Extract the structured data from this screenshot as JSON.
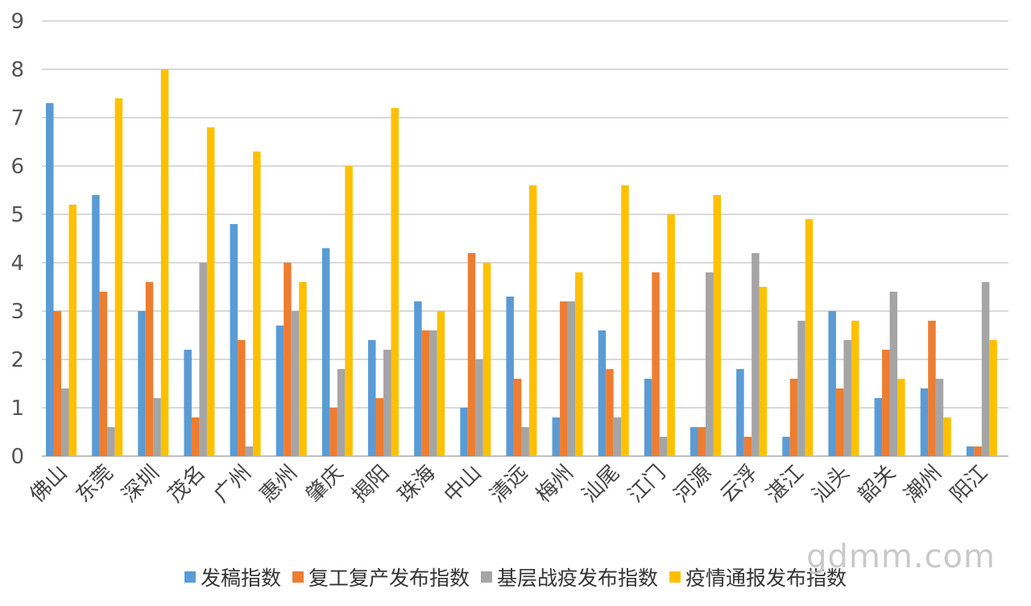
{
  "chart_data": {
    "type": "bar",
    "title": "",
    "xlabel": "",
    "ylabel": "",
    "ylim": [
      0,
      9
    ],
    "yticks": [
      "0",
      "1",
      "2",
      "3",
      "4",
      "5",
      "6",
      "7",
      "8",
      "9"
    ],
    "grid": true,
    "legend_position": "bottom",
    "categories": [
      "佛山",
      "东莞",
      "深圳",
      "茂名",
      "广州",
      "惠州",
      "肇庆",
      "揭阳",
      "珠海",
      "中山",
      "清远",
      "梅州",
      "汕尾",
      "江门",
      "河源",
      "云浮",
      "湛江",
      "汕头",
      "韶关",
      "潮州",
      "阳江"
    ],
    "series": [
      {
        "name": "发稿指数",
        "color": "#5b9bd5",
        "values": [
          7.3,
          5.4,
          3.0,
          2.2,
          4.8,
          2.7,
          4.3,
          2.4,
          3.2,
          1.0,
          3.3,
          0.8,
          2.6,
          1.6,
          0.6,
          1.8,
          0.4,
          3.0,
          1.2,
          1.4,
          0.2
        ]
      },
      {
        "name": "复工复产发布指数",
        "color": "#ed7d31",
        "values": [
          3.0,
          3.4,
          3.6,
          0.8,
          2.4,
          4.0,
          1.0,
          1.2,
          2.6,
          4.2,
          1.6,
          3.2,
          1.8,
          3.8,
          0.6,
          0.4,
          1.6,
          1.4,
          2.2,
          2.8,
          0.2
        ]
      },
      {
        "name": "基层战疫发布指数",
        "color": "#a5a5a5",
        "values": [
          1.4,
          0.6,
          1.2,
          4.0,
          0.2,
          3.0,
          1.8,
          2.2,
          2.6,
          2.0,
          0.6,
          3.2,
          0.8,
          0.4,
          3.8,
          4.2,
          2.8,
          2.4,
          3.4,
          1.6,
          3.6
        ]
      },
      {
        "name": "疫情通报发布指数",
        "color": "#ffc000",
        "values": [
          5.2,
          7.4,
          8.0,
          6.8,
          6.3,
          3.6,
          6.0,
          7.2,
          3.0,
          4.0,
          5.6,
          3.8,
          5.6,
          5.0,
          5.4,
          3.5,
          4.9,
          2.8,
          1.6,
          0.8,
          2.4
        ]
      }
    ]
  },
  "watermark": "gdmm.com"
}
